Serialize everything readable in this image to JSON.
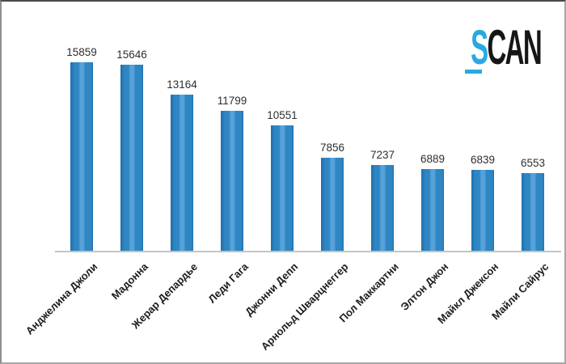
{
  "logo": {
    "s": "S",
    "can": "CAN"
  },
  "colors": {
    "bar_main": "#2E86C3",
    "bar_edge": "#1E6FAE",
    "bar_highlight": "#57A2DA",
    "axis_line": "#C4C4C4",
    "value_label": "#2E2E2E",
    "category_label": "#1C1C1C",
    "logo_blue": "#29A9E0",
    "logo_dark": "#161616",
    "background": "#FFFFFF"
  },
  "chart_data": {
    "type": "bar",
    "title": "",
    "categories": [
      "Анджелина Джоли",
      "Мадонна",
      "Жерар Депардье",
      "Леди Гага",
      "Джонни Депп",
      "Арнольд Шварцнеггер",
      "Пол Маккартни",
      "Элтон Джон",
      "Майкл Джексон",
      "Майли Сайрус"
    ],
    "values": [
      15859,
      15646,
      13164,
      11799,
      10551,
      7856,
      7237,
      6889,
      6839,
      6553
    ],
    "xlabel": "",
    "ylabel": "",
    "grid": false,
    "legend": false,
    "data_labels": true,
    "x_labels_rotation_deg": -45,
    "bar_color": "#2E86C3"
  }
}
